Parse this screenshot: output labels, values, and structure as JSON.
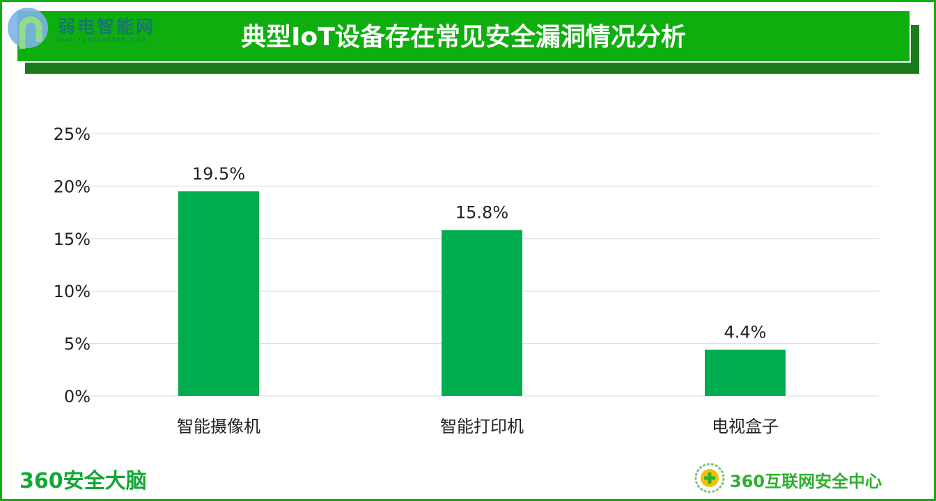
{
  "header": {
    "title": "典型IoT设备存在常见安全漏洞情况分析",
    "watermark_name": "弱电智能网",
    "watermark_url": "www.ruodian360.com"
  },
  "footer": {
    "left_brand": "360安全大脑",
    "right_brand": "360互联网安全中心"
  },
  "colors": {
    "bar": "#00ad4e",
    "banner": "#0fae0f",
    "banner_shadow": "#1b7a1b",
    "frame": "#10b010"
  },
  "chart_data": {
    "type": "bar",
    "categories": [
      "智能摄像机",
      "智能打印机",
      "电视盒子"
    ],
    "values": [
      19.5,
      15.8,
      4.4
    ],
    "data_labels": [
      "19.5%",
      "15.8%",
      "4.4%"
    ],
    "yticks": [
      "0%",
      "5%",
      "10%",
      "15%",
      "20%",
      "25%"
    ],
    "ylim": [
      0,
      25
    ],
    "grid": true,
    "xlabel": "",
    "ylabel": ""
  }
}
